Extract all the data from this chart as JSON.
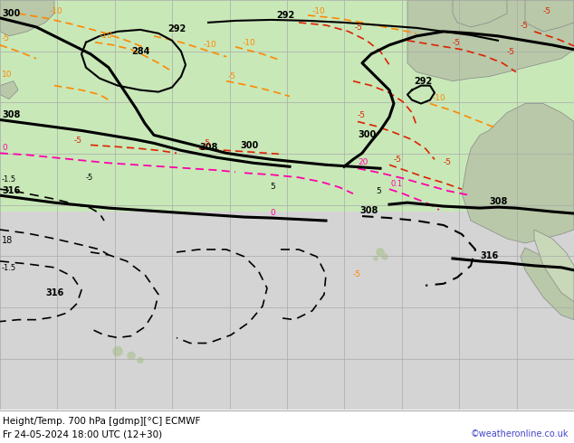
{
  "title_bottom": "Height/Temp. 700 hPa [gdmp][°C] ECMWF",
  "date_str": "Fr 24-05-2024 18:00 UTC (12+30)",
  "watermark": "©weatheronline.co.uk",
  "ocean_color_upper": "#c8e8c0",
  "ocean_color_lower": "#d8d8d8",
  "land_color": "#b8d8b0",
  "land_color_gray": "#b0b0b0",
  "grid_color": "#aaaaaa",
  "bottom_bar_color": "#ffffff",
  "bottom_text_color": "#000000",
  "watermark_color": "#4444cc",
  "figsize": [
    6.34,
    4.9
  ],
  "dpi": 100,
  "orange": "#ff8800",
  "red": "#dd2200",
  "magenta": "#ff00aa",
  "black": "#000000"
}
